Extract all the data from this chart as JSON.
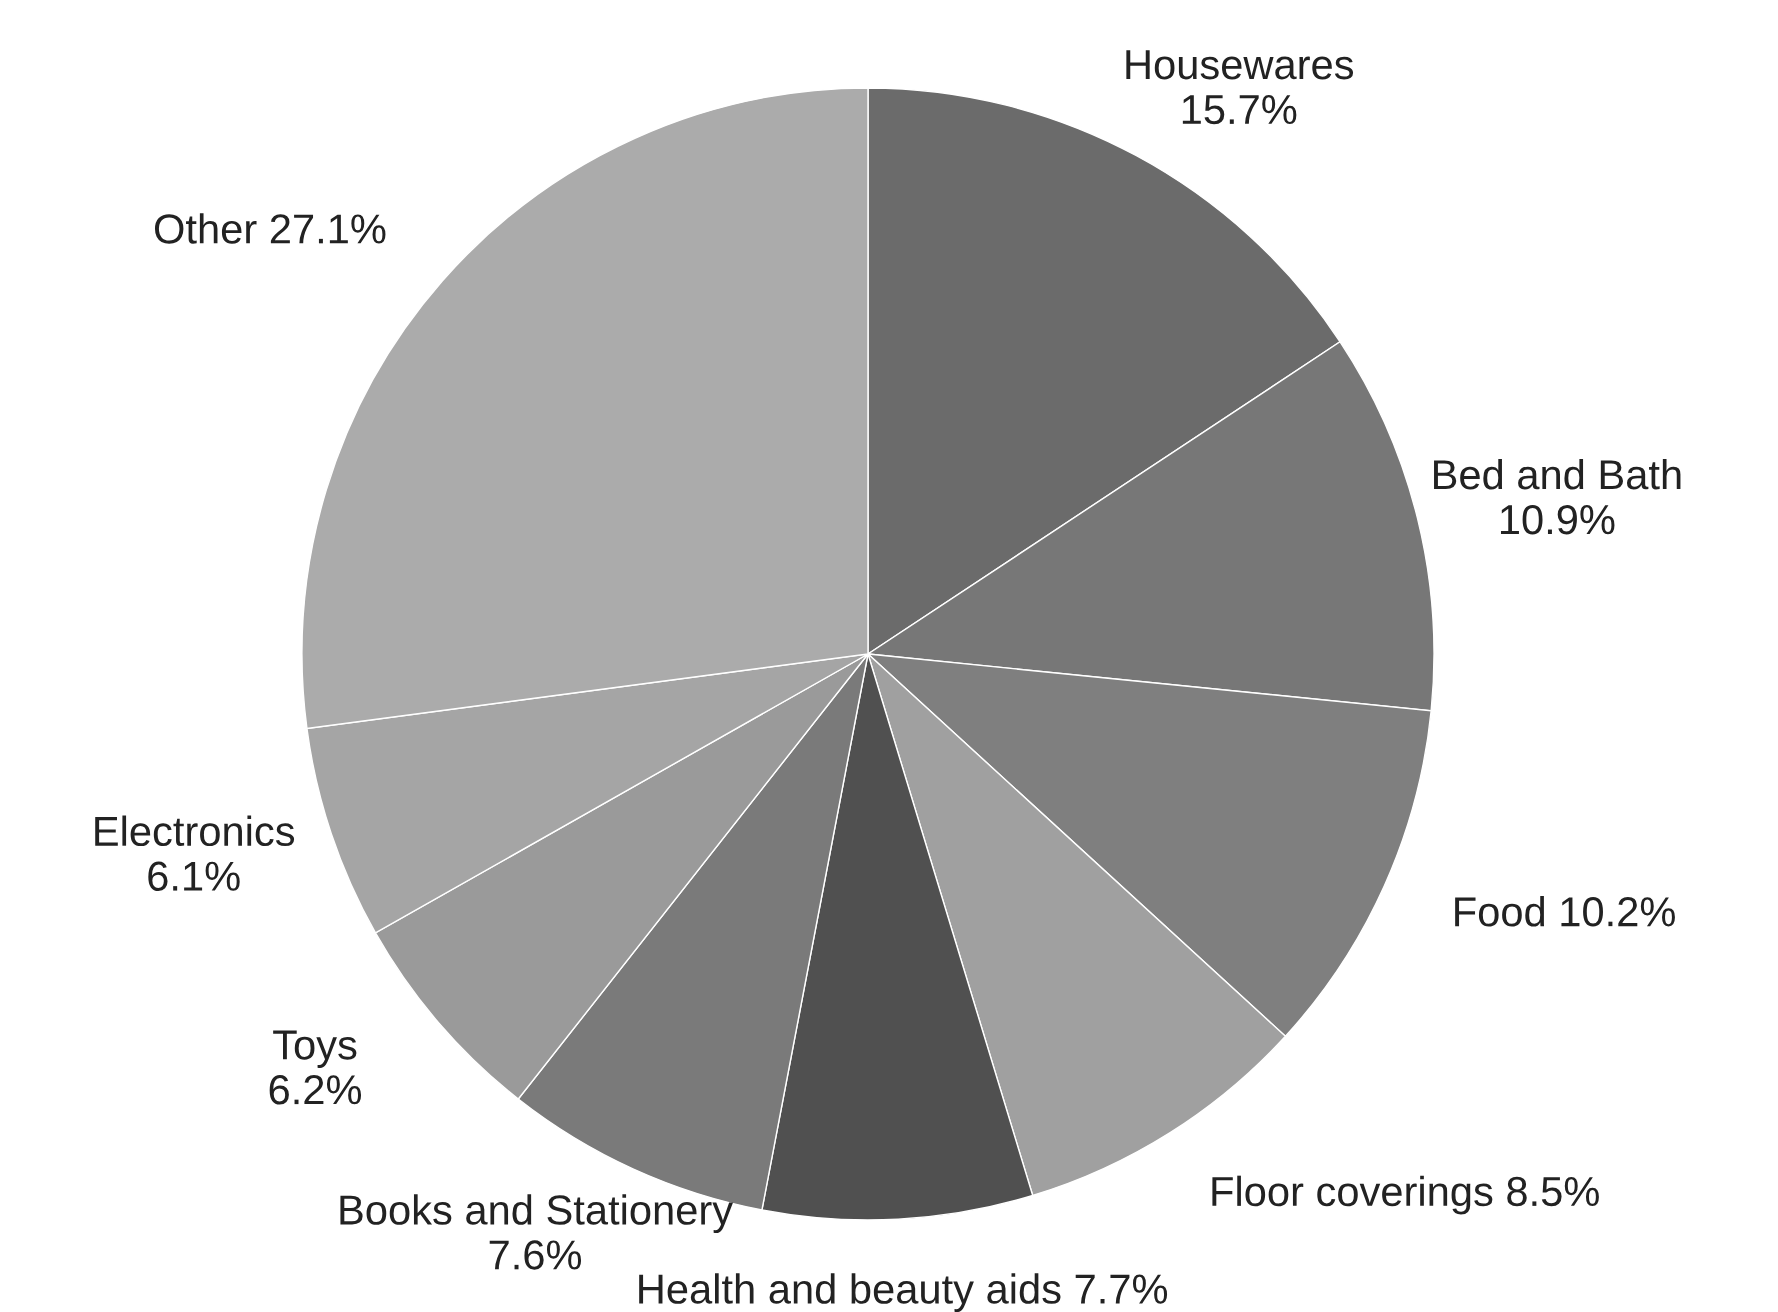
{
  "chart_data": {
    "type": "pie",
    "categories": [
      "Housewares",
      "Bed and Bath",
      "Food",
      "Floor coverings",
      "Health and beauty aids",
      "Books and Stationery",
      "Toys",
      "Electronics",
      "Other"
    ],
    "values": [
      15.7,
      10.9,
      10.2,
      8.5,
      7.7,
      7.6,
      6.2,
      6.1,
      27.1
    ],
    "value_labels": [
      "15.7%",
      "10.9%",
      "10.2%",
      "8.5%",
      "7.7%",
      "7.6%",
      "6.2%",
      "6.1%",
      "27.1%"
    ],
    "colors": [
      "#6b6b6b",
      "#777777",
      "#7f7f7f",
      "#a0a0a0",
      "#505050",
      "#7a7a7a",
      "#9a9a9a",
      "#a5a5a5",
      "#ababab"
    ]
  }
}
